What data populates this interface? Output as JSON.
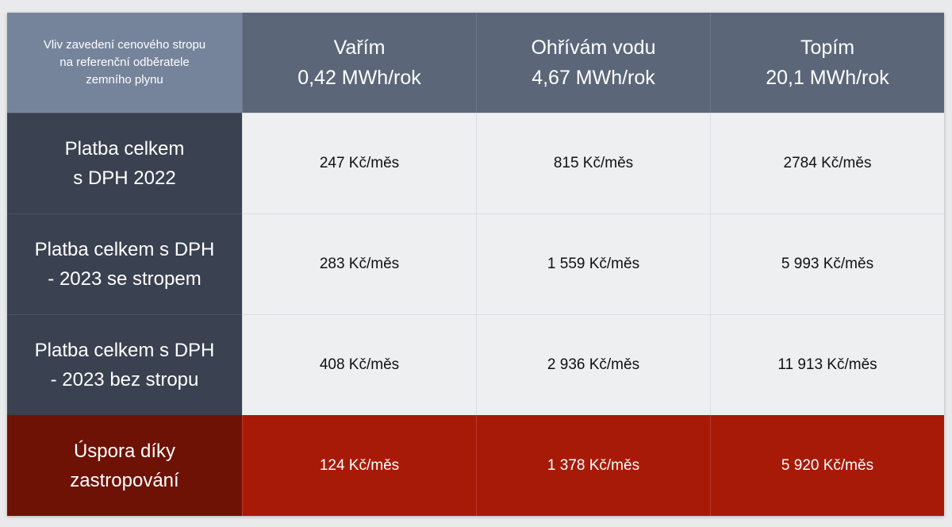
{
  "corner_label": [
    "Vliv zavedení cenového stropu",
    "na referenční odběratele",
    "zemního plynu"
  ],
  "columns": [
    {
      "title": "Vařím",
      "consumption": "0,42 MWh/rok"
    },
    {
      "title": "Ohřívám vodu",
      "consumption": "4,67 MWh/rok"
    },
    {
      "title": "Topím",
      "consumption": "20,1 MWh/rok"
    }
  ],
  "rows": [
    {
      "label": [
        "Platba celkem",
        "s DPH 2022"
      ],
      "values": [
        "247 Kč/měs",
        "815 Kč/měs",
        "2784 Kč/měs"
      ]
    },
    {
      "label": [
        "Platba celkem s DPH",
        "- 2023 se stropem"
      ],
      "values": [
        "283 Kč/měs",
        "1 559 Kč/měs",
        "5 993 Kč/měs"
      ]
    },
    {
      "label": [
        "Platba celkem s DPH",
        "- 2023 bez stropu"
      ],
      "values": [
        "408 Kč/měs",
        "2 936 Kč/měs",
        "11 913 Kč/měs"
      ]
    },
    {
      "label": [
        "Úspora díky",
        "zastropování"
      ],
      "values": [
        "124 Kč/měs",
        "1 378 Kč/měs",
        "5 920 Kč/měs"
      ]
    }
  ],
  "colors": {
    "header": "#5c6679",
    "corner": "#76849b",
    "row_label": "#3a4150",
    "savings_label": "#6e1206",
    "savings": "#a81a08"
  }
}
